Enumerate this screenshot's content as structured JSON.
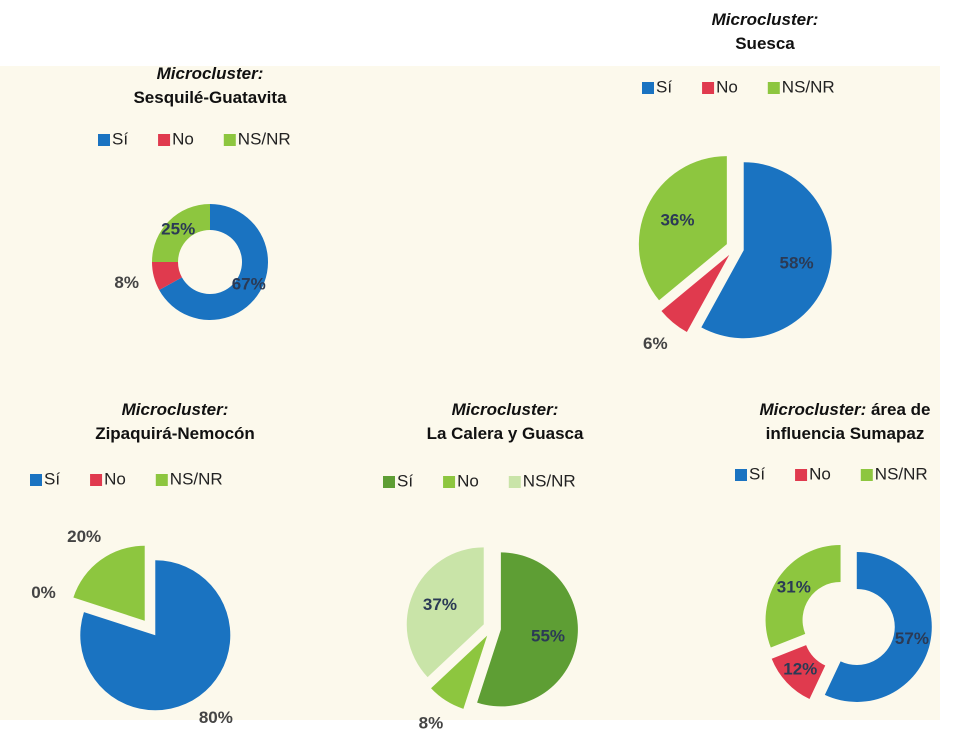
{
  "chart_data": [
    {
      "type": "donut",
      "title": "Microcluster:",
      "subtitle": "Sesquilé-Guatavita",
      "categories": [
        "Sí",
        "No",
        "NS/NR"
      ],
      "values": [
        67,
        8,
        25
      ],
      "value_labels": [
        "67%",
        "8%",
        "25%"
      ],
      "colors": [
        "#1a73c1",
        "#e03a4e",
        "#8dc63f"
      ]
    },
    {
      "type": "pie",
      "title": "Microcluster:",
      "subtitle": "Suesca",
      "categories": [
        "Sí",
        "No",
        "NS/NR"
      ],
      "values": [
        58,
        6,
        36
      ],
      "value_labels": [
        "58%",
        "6%",
        "36%"
      ],
      "colors": [
        "#1a73c1",
        "#e03a4e",
        "#8dc63f"
      ]
    },
    {
      "type": "pie",
      "title": "Microcluster:",
      "subtitle": "Zipaquirá-Nemocón",
      "categories": [
        "Sí",
        "No",
        "NS/NR"
      ],
      "values": [
        80,
        0,
        20
      ],
      "value_labels": [
        "80%",
        "0%",
        "20%"
      ],
      "colors": [
        "#1a73c1",
        "#e03a4e",
        "#8dc63f"
      ]
    },
    {
      "type": "pie",
      "title": "Microcluster:",
      "subtitle": "La Calera y Guasca",
      "categories": [
        "Sí",
        "No",
        "NS/NR"
      ],
      "values": [
        55,
        8,
        37
      ],
      "value_labels": [
        "55%",
        "8%",
        "37%"
      ],
      "colors": [
        "#5e9e34",
        "#8dc63f",
        "#c9e4a8"
      ]
    },
    {
      "type": "donut",
      "title": "Microcluster:",
      "subtitle": "área de influencia Sumapaz",
      "categories": [
        "Sí",
        "No",
        "NS/NR"
      ],
      "values": [
        57,
        12,
        31
      ],
      "value_labels": [
        "57%",
        "12%",
        "31%"
      ],
      "colors": [
        "#1a73c1",
        "#e03a4e",
        "#8dc63f"
      ]
    }
  ]
}
